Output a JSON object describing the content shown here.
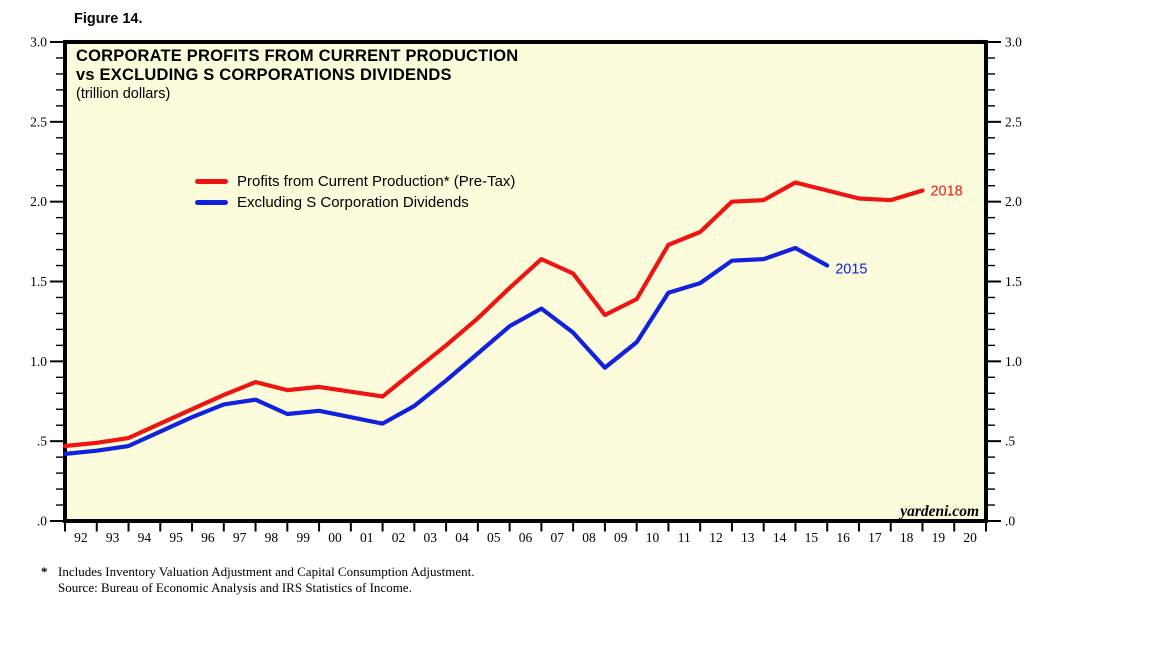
{
  "figure_label": "Figure 14.",
  "chart": {
    "title_line1": "CORPORATE PROFITS FROM CURRENT PRODUCTION",
    "title_line2": "vs EXCLUDING S CORPORATIONS DIVIDENDS",
    "subtitle": "(trillion dollars)",
    "watermark": "yardeni.com",
    "colors": {
      "plot_background": "#fcfcdc",
      "border": "#000000",
      "red_series": "#ee1411",
      "blue_series": "#1122dd"
    }
  },
  "chart_data": {
    "type": "line",
    "title": "CORPORATE PROFITS FROM CURRENT PRODUCTION vs EXCLUDING S CORPORATIONS DIVIDENDS",
    "units": "trillion dollars",
    "ylim": [
      0.0,
      3.0
    ],
    "grid": "off",
    "legend_position": "top-left-inside",
    "y_axis": {
      "labels": [
        "3.0",
        "2.5",
        "2.0",
        "1.5",
        "1.0",
        ".5",
        ".0"
      ],
      "values": [
        3.0,
        2.5,
        2.0,
        1.5,
        1.0,
        0.5,
        0.0
      ],
      "minor_tick_interval": 0.1,
      "sides": "left-and-right"
    },
    "x_tick_labels": [
      "92",
      "93",
      "94",
      "95",
      "96",
      "97",
      "98",
      "99",
      "00",
      "01",
      "02",
      "03",
      "04",
      "05",
      "06",
      "07",
      "08",
      "09",
      "10",
      "11",
      "12",
      "13",
      "14",
      "15",
      "16",
      "17",
      "18",
      "19",
      "20"
    ],
    "series": [
      {
        "name": "Profits from Current Production* (Pre-Tax)",
        "color": "#ee1411",
        "end_label": "2018",
        "years": [
          1991,
          1992,
          1993,
          1994,
          1995,
          1996,
          1997,
          1998,
          1999,
          2000,
          2001,
          2002,
          2003,
          2004,
          2005,
          2006,
          2007,
          2008,
          2009,
          2010,
          2011,
          2012,
          2013,
          2014,
          2015,
          2016,
          2017,
          2018
        ],
        "values": [
          0.47,
          0.49,
          0.52,
          0.61,
          0.7,
          0.79,
          0.87,
          0.82,
          0.84,
          0.81,
          0.78,
          0.94,
          1.1,
          1.27,
          1.46,
          1.64,
          1.55,
          1.29,
          1.39,
          1.73,
          1.81,
          2.0,
          2.01,
          2.12,
          2.07,
          2.02,
          2.01,
          2.07
        ]
      },
      {
        "name": "Excluding S Corporation Dividends",
        "color": "#1122dd",
        "end_label": "2015",
        "years": [
          1991,
          1992,
          1993,
          1994,
          1995,
          1996,
          1997,
          1998,
          1999,
          2000,
          2001,
          2002,
          2003,
          2004,
          2005,
          2006,
          2007,
          2008,
          2009,
          2010,
          2011,
          2012,
          2013,
          2014,
          2015
        ],
        "values": [
          0.42,
          0.44,
          0.47,
          0.56,
          0.65,
          0.73,
          0.76,
          0.67,
          0.69,
          0.65,
          0.61,
          0.72,
          0.88,
          1.05,
          1.22,
          1.33,
          1.18,
          0.96,
          1.12,
          1.43,
          1.49,
          1.63,
          1.64,
          1.71,
          1.6
        ]
      }
    ]
  },
  "footnote": {
    "marker": "*",
    "line1": "Includes Inventory Valuation Adjustment and Capital Consumption Adjustment.",
    "line2": "Source: Bureau of Economic Analysis and IRS Statistics of Income."
  }
}
